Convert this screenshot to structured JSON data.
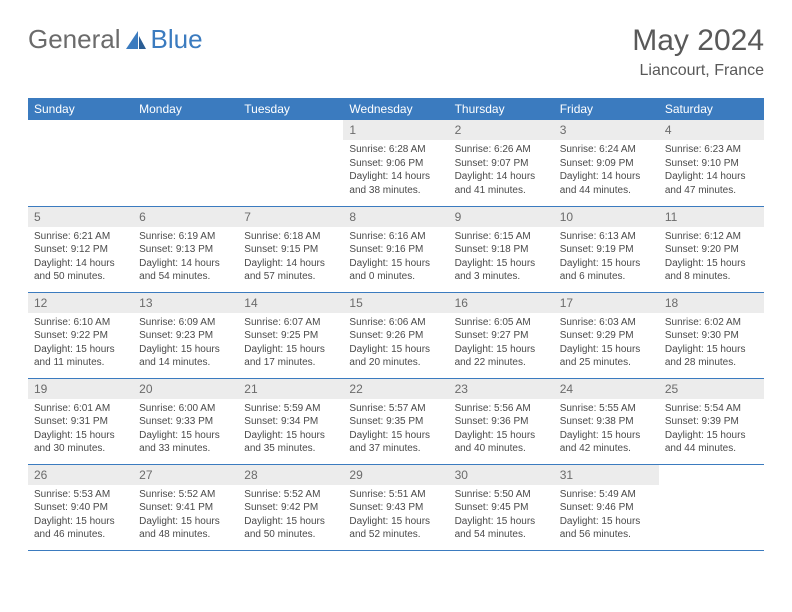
{
  "brand": {
    "part1": "General",
    "part2": "Blue"
  },
  "title": "May 2024",
  "location": "Liancourt, France",
  "colors": {
    "header_bg": "#3b7bbf",
    "header_text": "#ffffff",
    "daynum_bg": "#ececec",
    "text_gray": "#595959",
    "cell_text": "#4a4a4a",
    "row_border": "#3b7bbf"
  },
  "fonts": {
    "title_size": 30,
    "location_size": 16,
    "dayheader_size": 12,
    "daynum_size": 12,
    "body_size": 10
  },
  "day_headers": [
    "Sunday",
    "Monday",
    "Tuesday",
    "Wednesday",
    "Thursday",
    "Friday",
    "Saturday"
  ],
  "weeks": [
    [
      {
        "n": "",
        "sr": "",
        "ss": "",
        "dl": ""
      },
      {
        "n": "",
        "sr": "",
        "ss": "",
        "dl": ""
      },
      {
        "n": "",
        "sr": "",
        "ss": "",
        "dl": ""
      },
      {
        "n": "1",
        "sr": "6:28 AM",
        "ss": "9:06 PM",
        "dl": "14 hours and 38 minutes."
      },
      {
        "n": "2",
        "sr": "6:26 AM",
        "ss": "9:07 PM",
        "dl": "14 hours and 41 minutes."
      },
      {
        "n": "3",
        "sr": "6:24 AM",
        "ss": "9:09 PM",
        "dl": "14 hours and 44 minutes."
      },
      {
        "n": "4",
        "sr": "6:23 AM",
        "ss": "9:10 PM",
        "dl": "14 hours and 47 minutes."
      }
    ],
    [
      {
        "n": "5",
        "sr": "6:21 AM",
        "ss": "9:12 PM",
        "dl": "14 hours and 50 minutes."
      },
      {
        "n": "6",
        "sr": "6:19 AM",
        "ss": "9:13 PM",
        "dl": "14 hours and 54 minutes."
      },
      {
        "n": "7",
        "sr": "6:18 AM",
        "ss": "9:15 PM",
        "dl": "14 hours and 57 minutes."
      },
      {
        "n": "8",
        "sr": "6:16 AM",
        "ss": "9:16 PM",
        "dl": "15 hours and 0 minutes."
      },
      {
        "n": "9",
        "sr": "6:15 AM",
        "ss": "9:18 PM",
        "dl": "15 hours and 3 minutes."
      },
      {
        "n": "10",
        "sr": "6:13 AM",
        "ss": "9:19 PM",
        "dl": "15 hours and 6 minutes."
      },
      {
        "n": "11",
        "sr": "6:12 AM",
        "ss": "9:20 PM",
        "dl": "15 hours and 8 minutes."
      }
    ],
    [
      {
        "n": "12",
        "sr": "6:10 AM",
        "ss": "9:22 PM",
        "dl": "15 hours and 11 minutes."
      },
      {
        "n": "13",
        "sr": "6:09 AM",
        "ss": "9:23 PM",
        "dl": "15 hours and 14 minutes."
      },
      {
        "n": "14",
        "sr": "6:07 AM",
        "ss": "9:25 PM",
        "dl": "15 hours and 17 minutes."
      },
      {
        "n": "15",
        "sr": "6:06 AM",
        "ss": "9:26 PM",
        "dl": "15 hours and 20 minutes."
      },
      {
        "n": "16",
        "sr": "6:05 AM",
        "ss": "9:27 PM",
        "dl": "15 hours and 22 minutes."
      },
      {
        "n": "17",
        "sr": "6:03 AM",
        "ss": "9:29 PM",
        "dl": "15 hours and 25 minutes."
      },
      {
        "n": "18",
        "sr": "6:02 AM",
        "ss": "9:30 PM",
        "dl": "15 hours and 28 minutes."
      }
    ],
    [
      {
        "n": "19",
        "sr": "6:01 AM",
        "ss": "9:31 PM",
        "dl": "15 hours and 30 minutes."
      },
      {
        "n": "20",
        "sr": "6:00 AM",
        "ss": "9:33 PM",
        "dl": "15 hours and 33 minutes."
      },
      {
        "n": "21",
        "sr": "5:59 AM",
        "ss": "9:34 PM",
        "dl": "15 hours and 35 minutes."
      },
      {
        "n": "22",
        "sr": "5:57 AM",
        "ss": "9:35 PM",
        "dl": "15 hours and 37 minutes."
      },
      {
        "n": "23",
        "sr": "5:56 AM",
        "ss": "9:36 PM",
        "dl": "15 hours and 40 minutes."
      },
      {
        "n": "24",
        "sr": "5:55 AM",
        "ss": "9:38 PM",
        "dl": "15 hours and 42 minutes."
      },
      {
        "n": "25",
        "sr": "5:54 AM",
        "ss": "9:39 PM",
        "dl": "15 hours and 44 minutes."
      }
    ],
    [
      {
        "n": "26",
        "sr": "5:53 AM",
        "ss": "9:40 PM",
        "dl": "15 hours and 46 minutes."
      },
      {
        "n": "27",
        "sr": "5:52 AM",
        "ss": "9:41 PM",
        "dl": "15 hours and 48 minutes."
      },
      {
        "n": "28",
        "sr": "5:52 AM",
        "ss": "9:42 PM",
        "dl": "15 hours and 50 minutes."
      },
      {
        "n": "29",
        "sr": "5:51 AM",
        "ss": "9:43 PM",
        "dl": "15 hours and 52 minutes."
      },
      {
        "n": "30",
        "sr": "5:50 AM",
        "ss": "9:45 PM",
        "dl": "15 hours and 54 minutes."
      },
      {
        "n": "31",
        "sr": "5:49 AM",
        "ss": "9:46 PM",
        "dl": "15 hours and 56 minutes."
      },
      {
        "n": "",
        "sr": "",
        "ss": "",
        "dl": ""
      }
    ]
  ],
  "labels": {
    "sunrise": "Sunrise:",
    "sunset": "Sunset:",
    "daylight": "Daylight:"
  }
}
